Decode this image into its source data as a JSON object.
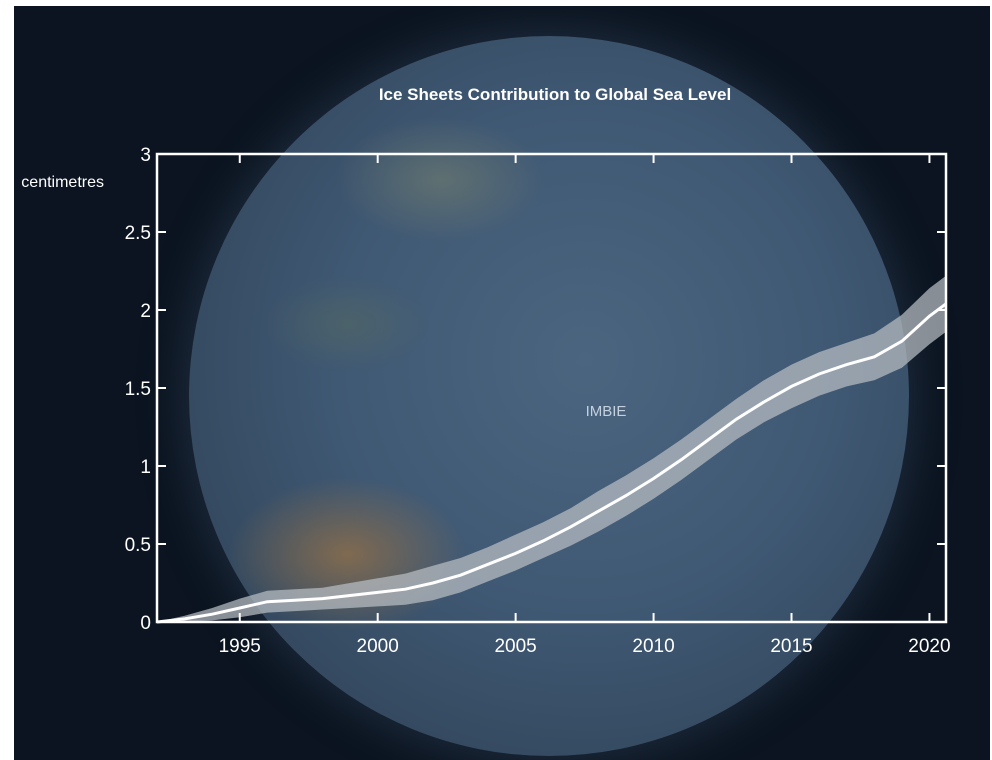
{
  "chart_data": {
    "type": "line",
    "title": "Ice Sheets Contribution to Global Sea Level",
    "ylabel": "centimetres",
    "xlabel": "",
    "annotation": "IMBIE",
    "xlim": [
      1992,
      2020.6
    ],
    "ylim": [
      0,
      3
    ],
    "x_ticks": [
      1995,
      2000,
      2005,
      2010,
      2015,
      2020
    ],
    "y_ticks": [
      {
        "value": 0,
        "label": "0"
      },
      {
        "value": 0.5,
        "label": "0.5"
      },
      {
        "value": 1,
        "label": "1"
      },
      {
        "value": 1.5,
        "label": "1.5"
      },
      {
        "value": 2,
        "label": "2"
      },
      {
        "value": 2.5,
        "label": "2.5"
      },
      {
        "value": 3,
        "label": "3"
      }
    ],
    "series": [
      {
        "x": [
          1992,
          1993,
          1994,
          1995,
          1996,
          1997,
          1998,
          1999,
          2000,
          2001,
          2002,
          2003,
          2004,
          2005,
          2006,
          2007,
          2008,
          2009,
          2010,
          2011,
          2012,
          2013,
          2014,
          2015,
          2016,
          2017,
          2018,
          2019,
          2020,
          2020.6
        ],
        "y": [
          0,
          0.02,
          0.05,
          0.09,
          0.13,
          0.14,
          0.15,
          0.17,
          0.19,
          0.21,
          0.25,
          0.3,
          0.37,
          0.44,
          0.52,
          0.61,
          0.71,
          0.81,
          0.92,
          1.04,
          1.17,
          1.3,
          1.41,
          1.51,
          1.59,
          1.65,
          1.7,
          1.8,
          1.96,
          2.04
        ],
        "lower": [
          0,
          0.0,
          0.01,
          0.03,
          0.06,
          0.07,
          0.08,
          0.09,
          0.1,
          0.11,
          0.14,
          0.19,
          0.26,
          0.33,
          0.41,
          0.49,
          0.58,
          0.68,
          0.79,
          0.91,
          1.04,
          1.17,
          1.28,
          1.37,
          1.45,
          1.51,
          1.55,
          1.63,
          1.78,
          1.86
        ],
        "upper": [
          0,
          0.04,
          0.09,
          0.15,
          0.2,
          0.21,
          0.22,
          0.25,
          0.28,
          0.31,
          0.36,
          0.41,
          0.48,
          0.56,
          0.64,
          0.73,
          0.84,
          0.94,
          1.05,
          1.17,
          1.3,
          1.43,
          1.55,
          1.65,
          1.73,
          1.79,
          1.85,
          1.97,
          2.14,
          2.22
        ]
      }
    ],
    "grid": false
  },
  "colors": {
    "background": "#0b1420",
    "axes": "#ffffff",
    "band": "#b9bec4",
    "line": "#ffffff",
    "annotation": "#c4d0de"
  }
}
